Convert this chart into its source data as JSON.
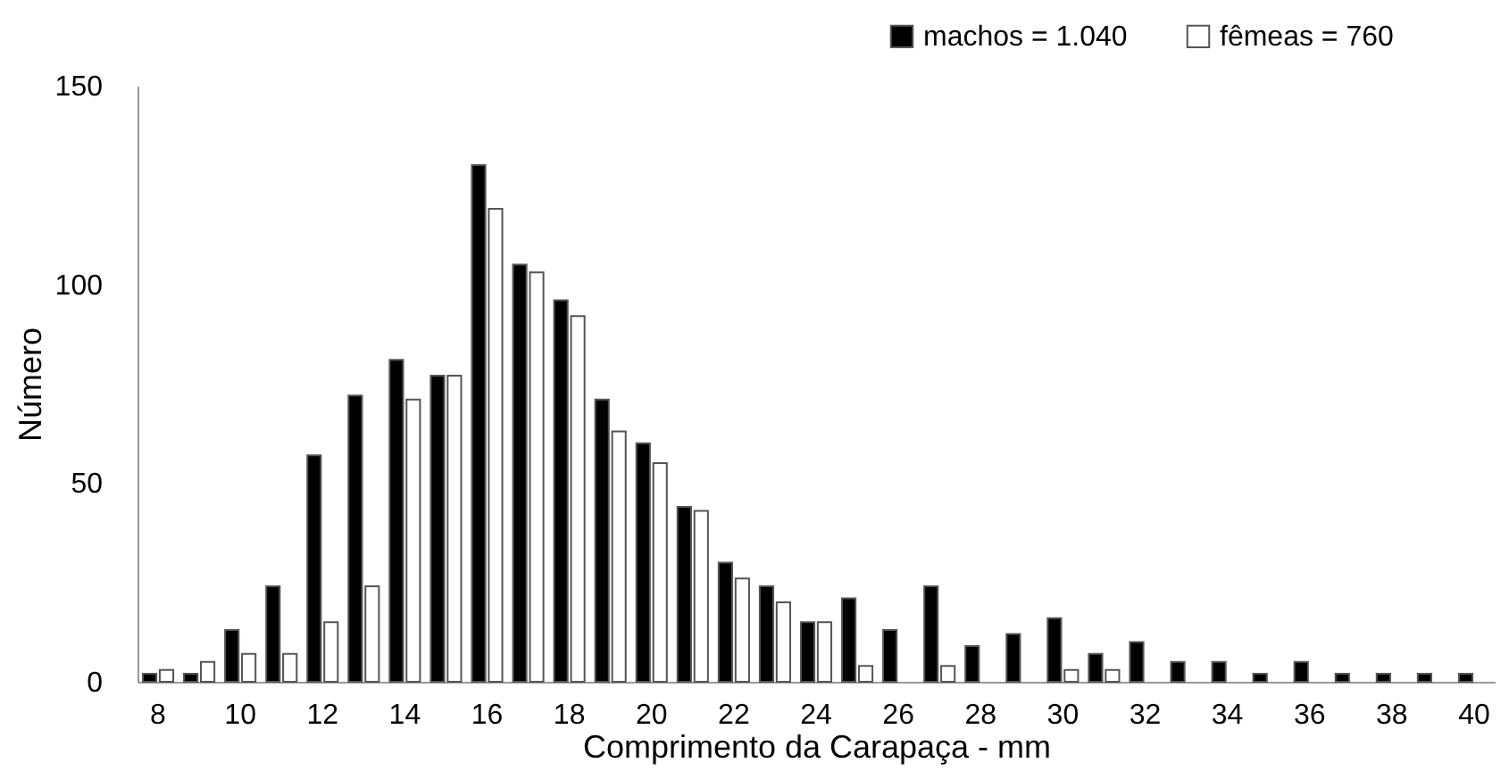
{
  "chart_data": {
    "type": "bar",
    "xlabel": "Comprimento da Carapaça - mm",
    "ylabel": "Número",
    "categories": [
      "8",
      null,
      "10",
      null,
      "12",
      null,
      "14",
      null,
      "16",
      null,
      "18",
      null,
      "20",
      null,
      "22",
      null,
      "24",
      null,
      "26",
      null,
      "28",
      null,
      "30",
      null,
      "32",
      null,
      "34",
      null,
      "36",
      null,
      "38",
      null,
      "40"
    ],
    "series": [
      {
        "name": "machos = 1.040",
        "color": "#000000",
        "values": [
          2,
          2,
          13,
          24,
          57,
          72,
          81,
          77,
          130,
          105,
          96,
          71,
          60,
          44,
          30,
          24,
          15,
          21,
          13,
          24,
          9,
          12,
          16,
          7,
          10,
          5,
          5,
          2,
          5,
          2,
          2,
          2,
          2
        ]
      },
      {
        "name": "fêmeas = 760",
        "color": "#ffffff",
        "values": [
          3,
          5,
          7,
          7,
          15,
          24,
          71,
          77,
          119,
          103,
          92,
          63,
          55,
          43,
          26,
          20,
          15,
          4,
          null,
          4,
          null,
          null,
          3,
          3,
          null,
          null,
          null,
          null,
          null,
          null,
          null,
          null,
          null
        ]
      }
    ],
    "ylim": [
      0,
      150
    ],
    "yticks": [
      0,
      50,
      100,
      150
    ],
    "grid": false,
    "legend": "top right"
  }
}
